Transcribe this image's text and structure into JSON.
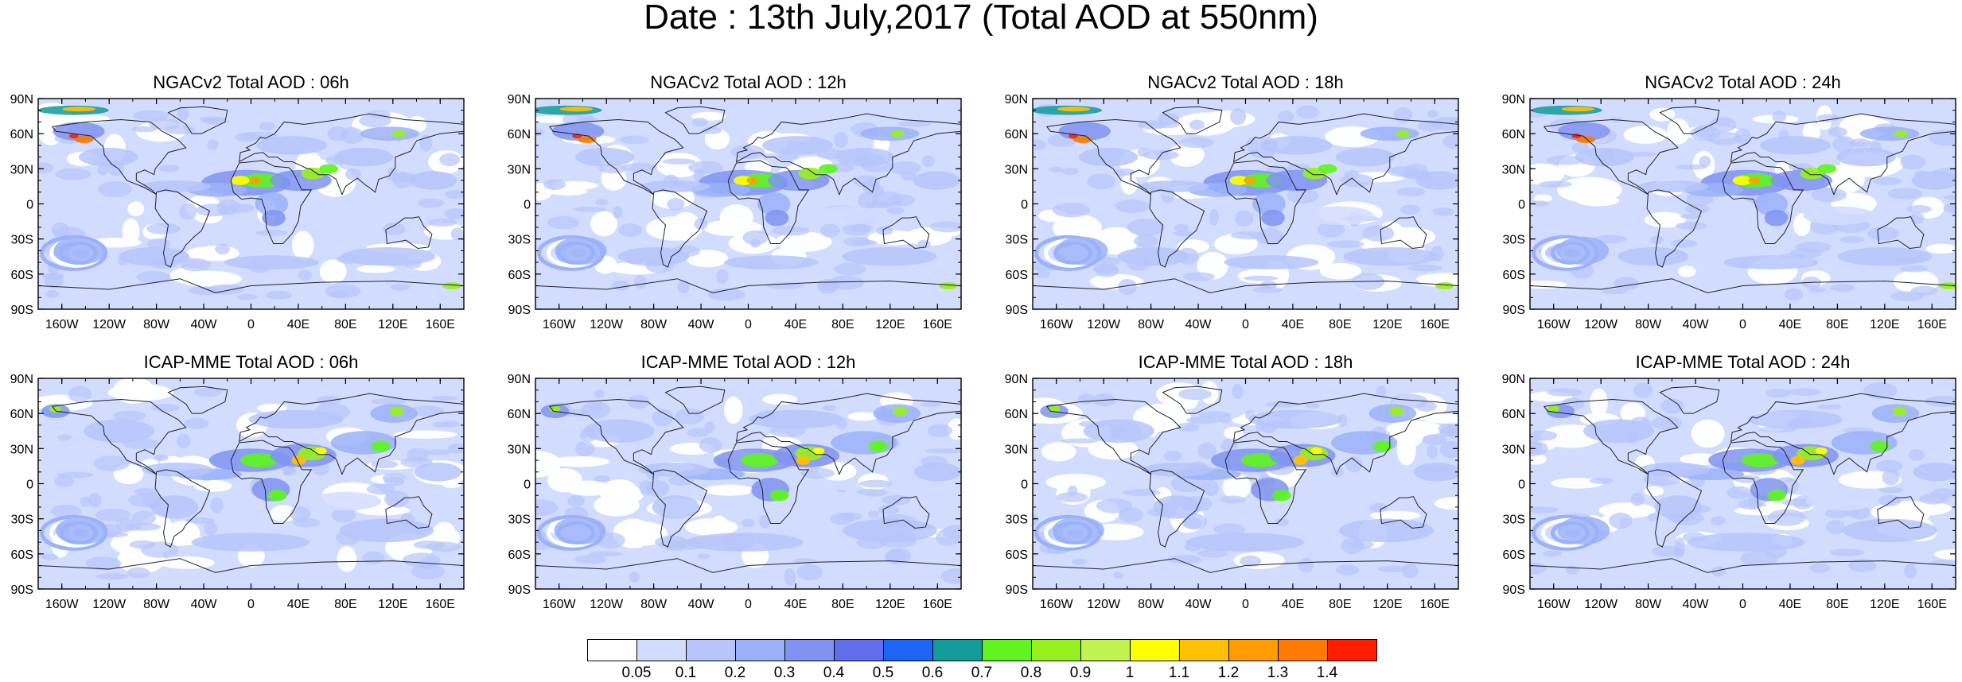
{
  "title": "Date : 13th July,2017 (Total AOD at 550nm)",
  "panels": [
    {
      "title": "NGACv2 Total AOD : 06h",
      "model": "NGACv2",
      "forecast_hour": "06h"
    },
    {
      "title": "NGACv2 Total AOD : 12h",
      "model": "NGACv2",
      "forecast_hour": "12h"
    },
    {
      "title": "NGACv2 Total AOD : 18h",
      "model": "NGACv2",
      "forecast_hour": "18h"
    },
    {
      "title": "NGACv2 Total AOD : 24h",
      "model": "NGACv2",
      "forecast_hour": "24h"
    },
    {
      "title": "ICAP-MME Total AOD : 06h",
      "model": "ICAP-MME",
      "forecast_hour": "06h"
    },
    {
      "title": "ICAP-MME Total AOD : 12h",
      "model": "ICAP-MME",
      "forecast_hour": "12h"
    },
    {
      "title": "ICAP-MME Total AOD : 18h",
      "model": "ICAP-MME",
      "forecast_hour": "18h"
    },
    {
      "title": "ICAP-MME Total AOD : 24h",
      "model": "ICAP-MME",
      "forecast_hour": "24h"
    }
  ],
  "axes": {
    "lat_labels": [
      "90N",
      "60N",
      "30N",
      "0",
      "30S",
      "60S",
      "90S"
    ],
    "lon_labels": [
      "160W",
      "120W",
      "80W",
      "40W",
      "0",
      "40E",
      "80E",
      "120E",
      "160E"
    ]
  },
  "colorbar": {
    "colors": [
      "#ffffff",
      "#d2dcff",
      "#b6c4fb",
      "#9bb1f9",
      "#8093f2",
      "#626fed",
      "#1e64f5",
      "#119b9b",
      "#60f41e",
      "#96f020",
      "#c0f250",
      "#ffff00",
      "#ffc000",
      "#ff9d00",
      "#ff7a00",
      "#ff1e00"
    ],
    "labels": [
      "0.05",
      "0.1",
      "0.2",
      "0.3",
      "0.4",
      "0.5",
      "0.6",
      "0.7",
      "0.8",
      "0.9",
      "1",
      "1.1",
      "1.2",
      "1.3",
      "1.4"
    ]
  }
}
